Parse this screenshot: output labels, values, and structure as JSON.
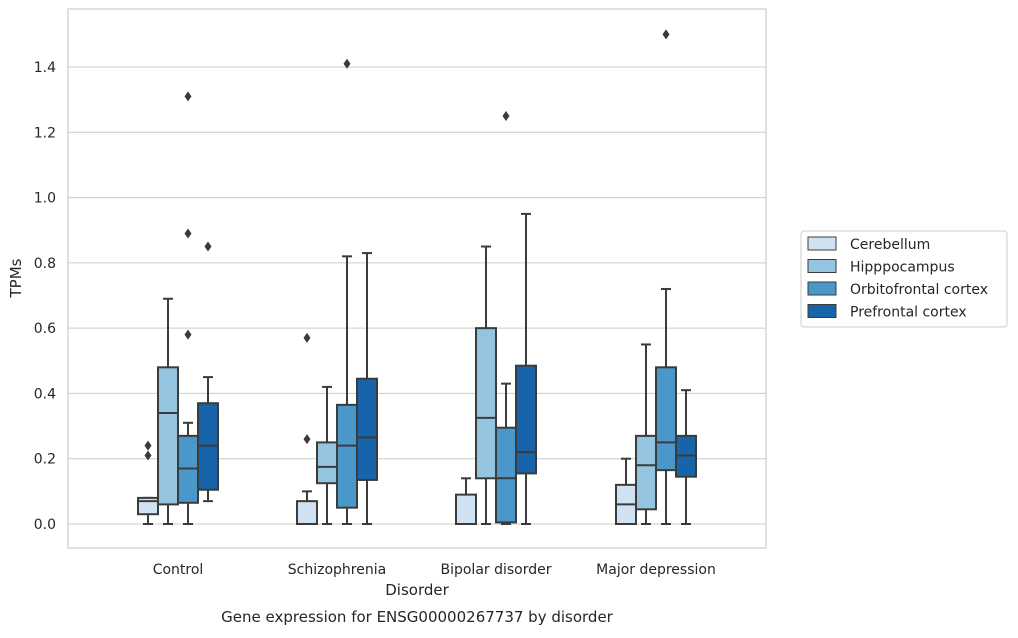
{
  "chart_data": {
    "type": "box",
    "title": "",
    "caption": "Gene expression for ENSG00000267737 by disorder",
    "xlabel": "Disorder",
    "ylabel": "TPMs",
    "ylim": [
      -0.07,
      1.58
    ],
    "yticks": [
      0.0,
      0.2,
      0.4,
      0.6,
      0.8,
      1.0,
      1.2,
      1.4
    ],
    "ytick_labels": [
      "0.0",
      "0.2",
      "0.4",
      "0.6",
      "0.8",
      "1.0",
      "1.2",
      "1.4"
    ],
    "grid": "horizontal",
    "legend_position": "right",
    "categories": [
      "Control",
      "Schizophrenia",
      "Bipolar disorder",
      "Major depression"
    ],
    "series": [
      {
        "name": "Cerebellum",
        "color": "#d0e1f2",
        "boxes": [
          {
            "whislo": 0.0,
            "q1": 0.03,
            "med": 0.07,
            "q3": 0.08,
            "whishi": 0.08,
            "fliers": [
              0.21,
              0.24
            ]
          },
          {
            "whislo": 0.0,
            "q1": 0.0,
            "med": 0.0,
            "q3": 0.07,
            "whishi": 0.1,
            "fliers": [
              0.26,
              0.57
            ]
          },
          {
            "whislo": 0.0,
            "q1": 0.0,
            "med": 0.0,
            "q3": 0.09,
            "whishi": 0.14,
            "fliers": []
          },
          {
            "whislo": 0.0,
            "q1": 0.0,
            "med": 0.06,
            "q3": 0.12,
            "whishi": 0.2,
            "fliers": []
          }
        ]
      },
      {
        "name": "Hipppocampus",
        "color": "#94c4df",
        "boxes": [
          {
            "whislo": 0.0,
            "q1": 0.06,
            "med": 0.34,
            "q3": 0.48,
            "whishi": 0.69,
            "fliers": []
          },
          {
            "whislo": 0.0,
            "q1": 0.125,
            "med": 0.175,
            "q3": 0.25,
            "whishi": 0.42,
            "fliers": []
          },
          {
            "whislo": 0.0,
            "q1": 0.14,
            "med": 0.325,
            "q3": 0.6,
            "whishi": 0.85,
            "fliers": []
          },
          {
            "whislo": 0.0,
            "q1": 0.045,
            "med": 0.18,
            "q3": 0.27,
            "whishi": 0.55,
            "fliers": []
          }
        ]
      },
      {
        "name": "Orbitofrontal cortex",
        "color": "#4a98c9",
        "boxes": [
          {
            "whislo": 0.0,
            "q1": 0.065,
            "med": 0.17,
            "q3": 0.27,
            "whishi": 0.31,
            "fliers": [
              0.58,
              0.89,
              1.31
            ]
          },
          {
            "whislo": 0.0,
            "q1": 0.05,
            "med": 0.24,
            "q3": 0.365,
            "whishi": 0.82,
            "fliers": [
              1.41
            ]
          },
          {
            "whislo": 0.0,
            "q1": 0.005,
            "med": 0.14,
            "q3": 0.295,
            "whishi": 0.43,
            "fliers": [
              1.25
            ]
          },
          {
            "whislo": 0.0,
            "q1": 0.165,
            "med": 0.25,
            "q3": 0.48,
            "whishi": 0.72,
            "fliers": [
              1.5
            ]
          }
        ]
      },
      {
        "name": "Prefrontal cortex",
        "color": "#1764ab",
        "boxes": [
          {
            "whislo": 0.07,
            "q1": 0.105,
            "med": 0.24,
            "q3": 0.37,
            "whishi": 0.45,
            "fliers": [
              0.85
            ]
          },
          {
            "whislo": 0.0,
            "q1": 0.135,
            "med": 0.265,
            "q3": 0.445,
            "whishi": 0.83,
            "fliers": []
          },
          {
            "whislo": 0.0,
            "q1": 0.155,
            "med": 0.22,
            "q3": 0.485,
            "whishi": 0.95,
            "fliers": []
          },
          {
            "whislo": 0.0,
            "q1": 0.145,
            "med": 0.21,
            "q3": 0.27,
            "whishi": 0.41,
            "fliers": []
          }
        ]
      }
    ]
  }
}
